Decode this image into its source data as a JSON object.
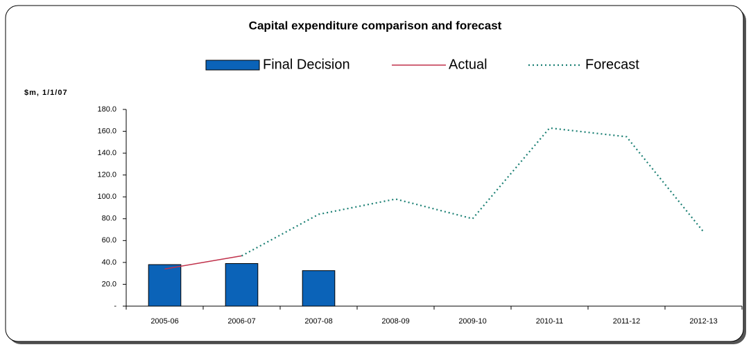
{
  "chart_data": {
    "type": "combo",
    "title": "Capital expenditure comparison and forecast",
    "y_label": "$m, 1/1/07",
    "categories": [
      "2005-06",
      "2006-07",
      "2007-08",
      "2008-09",
      "2009-10",
      "2010-11",
      "2011-12",
      "2012-13"
    ],
    "series": [
      {
        "name": "Final Decision",
        "kind": "bar",
        "color": "#0b63b8",
        "values": [
          38,
          39,
          32.5,
          null,
          null,
          null,
          null,
          null
        ]
      },
      {
        "name": "Actual",
        "kind": "line",
        "color": "#c0304a",
        "values": [
          34,
          46,
          null,
          null,
          null,
          null,
          null,
          null
        ]
      },
      {
        "name": "Forecast",
        "kind": "dotted",
        "color": "#1a7f73",
        "values": [
          null,
          46,
          84,
          98,
          80,
          163,
          155,
          68
        ]
      }
    ],
    "ylim": [
      0,
      180
    ],
    "yticks": [
      {
        "value": 0,
        "label": "-"
      },
      {
        "value": 20,
        "label": "20.0"
      },
      {
        "value": 40,
        "label": "40.0"
      },
      {
        "value": 60,
        "label": "60.0"
      },
      {
        "value": 80,
        "label": "80.0"
      },
      {
        "value": 100,
        "label": "100.0"
      },
      {
        "value": 120,
        "label": "120.0"
      },
      {
        "value": 140,
        "label": "140.0"
      },
      {
        "value": 160,
        "label": "160.0"
      },
      {
        "value": 180,
        "label": "180.0"
      }
    ],
    "grid": false
  }
}
